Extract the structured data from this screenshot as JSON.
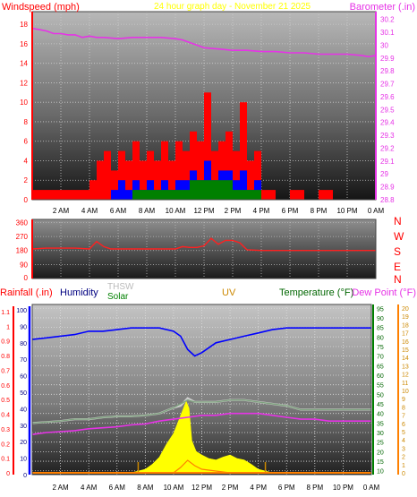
{
  "header": {
    "windspeed_label": "Windspeed (mph)",
    "title": "24 hour graph day - November 21 2025",
    "barometer_label": "Barometer (.in)"
  },
  "colors": {
    "red": "#ff0000",
    "magenta": "#e633e6",
    "blue": "#0000ff",
    "green": "#008000",
    "orange": "#ff8000",
    "yellow": "#ffff00",
    "uv": "#cc8800",
    "grey": "#bbbbbb",
    "darkgreen": "#006600",
    "navy": "#000080"
  },
  "direction_letters": [
    "N",
    "W",
    "S",
    "E",
    "N"
  ],
  "bottom_header": {
    "rainfall": "Rainfall (.in)",
    "humidity": "Humidity",
    "thsw": "THSW",
    "solar": "Solar",
    "uv": "UV",
    "temperature": "Temperature (°F)",
    "dewpoint": "Dew Point (°F)"
  },
  "chart_data": [
    {
      "type": "line",
      "name": "wind-barometer",
      "x_ticks": [
        "2 AM",
        "4 AM",
        "6 AM",
        "8 AM",
        "10 AM",
        "12 PM",
        "2 PM",
        "4 PM",
        "6 PM",
        "8 PM",
        "10 PM",
        "0 AM"
      ],
      "y_left_ticks": [
        "0",
        "2",
        "4",
        "6",
        "8",
        "10",
        "12",
        "14",
        "16",
        "18"
      ],
      "y_right_ticks": [
        "28.8",
        "28.9",
        "29",
        "29.1",
        "29.2",
        "29.3",
        "29.4",
        "29.5",
        "29.6",
        "29.7",
        "29.8",
        "29.9",
        "30",
        "30.1",
        "30.2"
      ],
      "ylim_left": [
        0,
        19.3
      ],
      "ylim_right": [
        28.8,
        30.26
      ],
      "barometer": {
        "x": [
          0,
          0.5,
          1,
          1.5,
          2,
          2.5,
          3,
          3.5,
          4,
          4.5,
          5,
          6,
          7,
          8,
          9,
          10,
          10.5,
          11,
          11.5,
          12,
          13,
          14,
          15,
          16,
          17,
          18,
          19,
          20,
          21,
          22,
          23,
          23.5,
          24
        ],
        "y": [
          30.13,
          30.12,
          30.11,
          30.09,
          30.09,
          30.08,
          30.08,
          30.06,
          30.07,
          30.06,
          30.06,
          30.05,
          30.06,
          30.06,
          30.06,
          30.05,
          30.04,
          30.02,
          30.0,
          29.98,
          29.97,
          29.96,
          29.96,
          29.95,
          29.95,
          29.94,
          29.94,
          29.93,
          29.93,
          29.93,
          29.92,
          29.91,
          29.92
        ]
      },
      "wind_gust": {
        "x": [
          0,
          0.5,
          1,
          1.5,
          2,
          2.5,
          3,
          3.5,
          4,
          4.5,
          5,
          5.5,
          6,
          6.5,
          7,
          7.5,
          8,
          8.5,
          9,
          9.5,
          10,
          10.5,
          11,
          11.5,
          12,
          12.5,
          13,
          13.5,
          14,
          14.5,
          15,
          15.5,
          16,
          16.5,
          17,
          17.5,
          18,
          19,
          20,
          21,
          22,
          23,
          24
        ],
        "y": [
          1,
          1,
          1,
          1,
          1,
          1,
          1,
          1,
          2,
          4,
          5,
          3,
          5,
          4,
          6,
          4,
          5,
          4,
          6,
          4,
          6,
          5,
          7,
          6,
          11,
          5,
          6,
          7,
          5,
          10,
          4,
          5,
          1,
          1,
          0,
          0,
          1,
          0,
          1,
          0,
          0,
          0,
          0
        ]
      },
      "wind_avg": {
        "x": [
          0,
          1,
          2,
          3,
          4,
          5,
          5.5,
          6,
          6.5,
          7,
          7.5,
          8,
          8.5,
          9,
          9.5,
          10,
          10.5,
          11,
          11.5,
          12,
          12.5,
          13,
          13.5,
          14,
          14.5,
          15,
          15.5,
          16,
          17,
          24
        ],
        "y": [
          0,
          0,
          0,
          0,
          0,
          0,
          1,
          2,
          1,
          2,
          1,
          2,
          1,
          2,
          1,
          2,
          2,
          3,
          2,
          4,
          2,
          3,
          3,
          2,
          3,
          1,
          2,
          0,
          0,
          0
        ]
      },
      "wind_low": {
        "x": [
          0,
          6,
          7,
          8,
          9,
          10,
          11,
          12,
          13,
          14,
          15,
          16,
          24
        ],
        "y": [
          0,
          0,
          1,
          1,
          1,
          1,
          2,
          2,
          2,
          1,
          1,
          0,
          0
        ]
      }
    },
    {
      "type": "line",
      "name": "wind-direction",
      "y_ticks": [
        "360",
        "270",
        "180",
        "90",
        "0"
      ],
      "ylim": [
        0,
        380
      ],
      "x": [
        0,
        1,
        2,
        3,
        4,
        4.5,
        5,
        5.5,
        6,
        7,
        8,
        9,
        10,
        10.5,
        11,
        11.5,
        12,
        12.5,
        13,
        13.5,
        14,
        14.5,
        15,
        16,
        17,
        18,
        19,
        20,
        21,
        22,
        23,
        24
      ],
      "y": [
        190,
        195,
        195,
        195,
        190,
        238,
        205,
        190,
        190,
        190,
        190,
        190,
        190,
        205,
        200,
        200,
        210,
        258,
        220,
        245,
        245,
        230,
        185,
        180,
        180,
        180,
        180,
        180,
        180,
        180,
        180,
        180
      ]
    },
    {
      "type": "line",
      "name": "temperature-humidity-solar",
      "x_ticks": [
        "2 AM",
        "4 AM",
        "6 AM",
        "8 AM",
        "10 AM",
        "12 PM",
        "2 PM",
        "4 PM",
        "6 PM",
        "8 PM",
        "10 PM",
        "0 AM"
      ],
      "y_rain_ticks": [
        "0",
        "0.1",
        "0.2",
        "0.3",
        "0.4",
        "0.5",
        "0.6",
        "0.7",
        "0.8",
        "0.9",
        "1",
        "1.1"
      ],
      "y_hum_ticks": [
        "0",
        "10",
        "20",
        "30",
        "40",
        "50",
        "60",
        "70",
        "80",
        "90",
        "100"
      ],
      "y_temp_ticks": [
        "10",
        "15",
        "20",
        "25",
        "30",
        "35",
        "40",
        "45",
        "50",
        "55",
        "60",
        "65",
        "70",
        "75",
        "80",
        "85",
        "90",
        "95"
      ],
      "y_uv_ticks": [
        "0",
        "1",
        "2",
        "3",
        "4",
        "5",
        "6",
        "7",
        "8",
        "9",
        "10",
        "11",
        "12",
        "13",
        "14",
        "15",
        "16",
        "17",
        "18",
        "19",
        "20"
      ],
      "ylim_temp": [
        8,
        97
      ],
      "ylim_hum": [
        0,
        100
      ],
      "humidity": {
        "x": [
          0,
          1,
          2,
          3,
          4,
          5,
          6,
          7,
          8,
          9,
          10,
          10.5,
          11,
          11.5,
          12,
          12.5,
          13,
          14,
          15,
          16,
          17,
          18,
          19,
          20,
          21,
          22,
          23,
          24
        ],
        "y": [
          82,
          83,
          84,
          85,
          87,
          87,
          88,
          89,
          89,
          89,
          87,
          84,
          76,
          72,
          74,
          77,
          80,
          82,
          84,
          86,
          88,
          89,
          89,
          89,
          89,
          89,
          89,
          89
        ]
      },
      "thsw": {
        "x": [
          0,
          1,
          2,
          3,
          4,
          5,
          6,
          7,
          8,
          9,
          10,
          10.5,
          11,
          11.5,
          12,
          13,
          14,
          15,
          16,
          17,
          18,
          19,
          20,
          21,
          22,
          23,
          24
        ],
        "y": [
          35,
          35.5,
          36,
          37,
          37,
          38,
          38.5,
          38.5,
          39,
          40,
          43,
          44,
          48,
          46,
          46,
          46,
          47,
          47,
          46,
          45,
          44,
          42,
          42,
          42,
          42,
          42,
          42
        ]
      },
      "temperature": {
        "x": [
          0,
          1,
          2,
          3,
          4,
          5,
          6,
          7,
          8,
          9,
          10,
          10.5,
          11,
          11.5,
          12,
          13,
          14,
          15,
          16,
          17,
          18,
          19,
          20,
          21,
          22,
          23,
          24
        ],
        "y": [
          35,
          35.5,
          36,
          37,
          37,
          38,
          38.5,
          38.5,
          39,
          40,
          43,
          45,
          47,
          46,
          46,
          46,
          47,
          47,
          46,
          45,
          44,
          42,
          42,
          42,
          42,
          42,
          42
        ]
      },
      "dewpoint": {
        "x": [
          0,
          1,
          2,
          3,
          4,
          5,
          6,
          7,
          8,
          9,
          10,
          11,
          12,
          13,
          14,
          15,
          16,
          17,
          18,
          19,
          20,
          21,
          22,
          23,
          24
        ],
        "y": [
          29,
          30,
          30.5,
          31,
          32,
          32.5,
          33,
          34,
          34.5,
          36,
          37,
          38,
          39,
          39,
          40,
          40,
          40,
          39,
          38,
          37,
          37,
          36,
          36,
          36,
          36
        ]
      },
      "solar": {
        "x": [
          0,
          7,
          8,
          8.5,
          9,
          9.5,
          10,
          10.3,
          10.6,
          10.9,
          11.1,
          11.3,
          11.6,
          12,
          12.5,
          13,
          13.5,
          14,
          14.5,
          15,
          15.5,
          16,
          17,
          24
        ],
        "y": [
          0,
          0,
          0.05,
          0.12,
          0.22,
          0.4,
          0.55,
          0.7,
          0.85,
          1.0,
          0.9,
          0.45,
          0.3,
          0.25,
          0.2,
          0.18,
          0.22,
          0.25,
          0.2,
          0.18,
          0.12,
          0.05,
          0,
          0
        ]
      }
    }
  ]
}
